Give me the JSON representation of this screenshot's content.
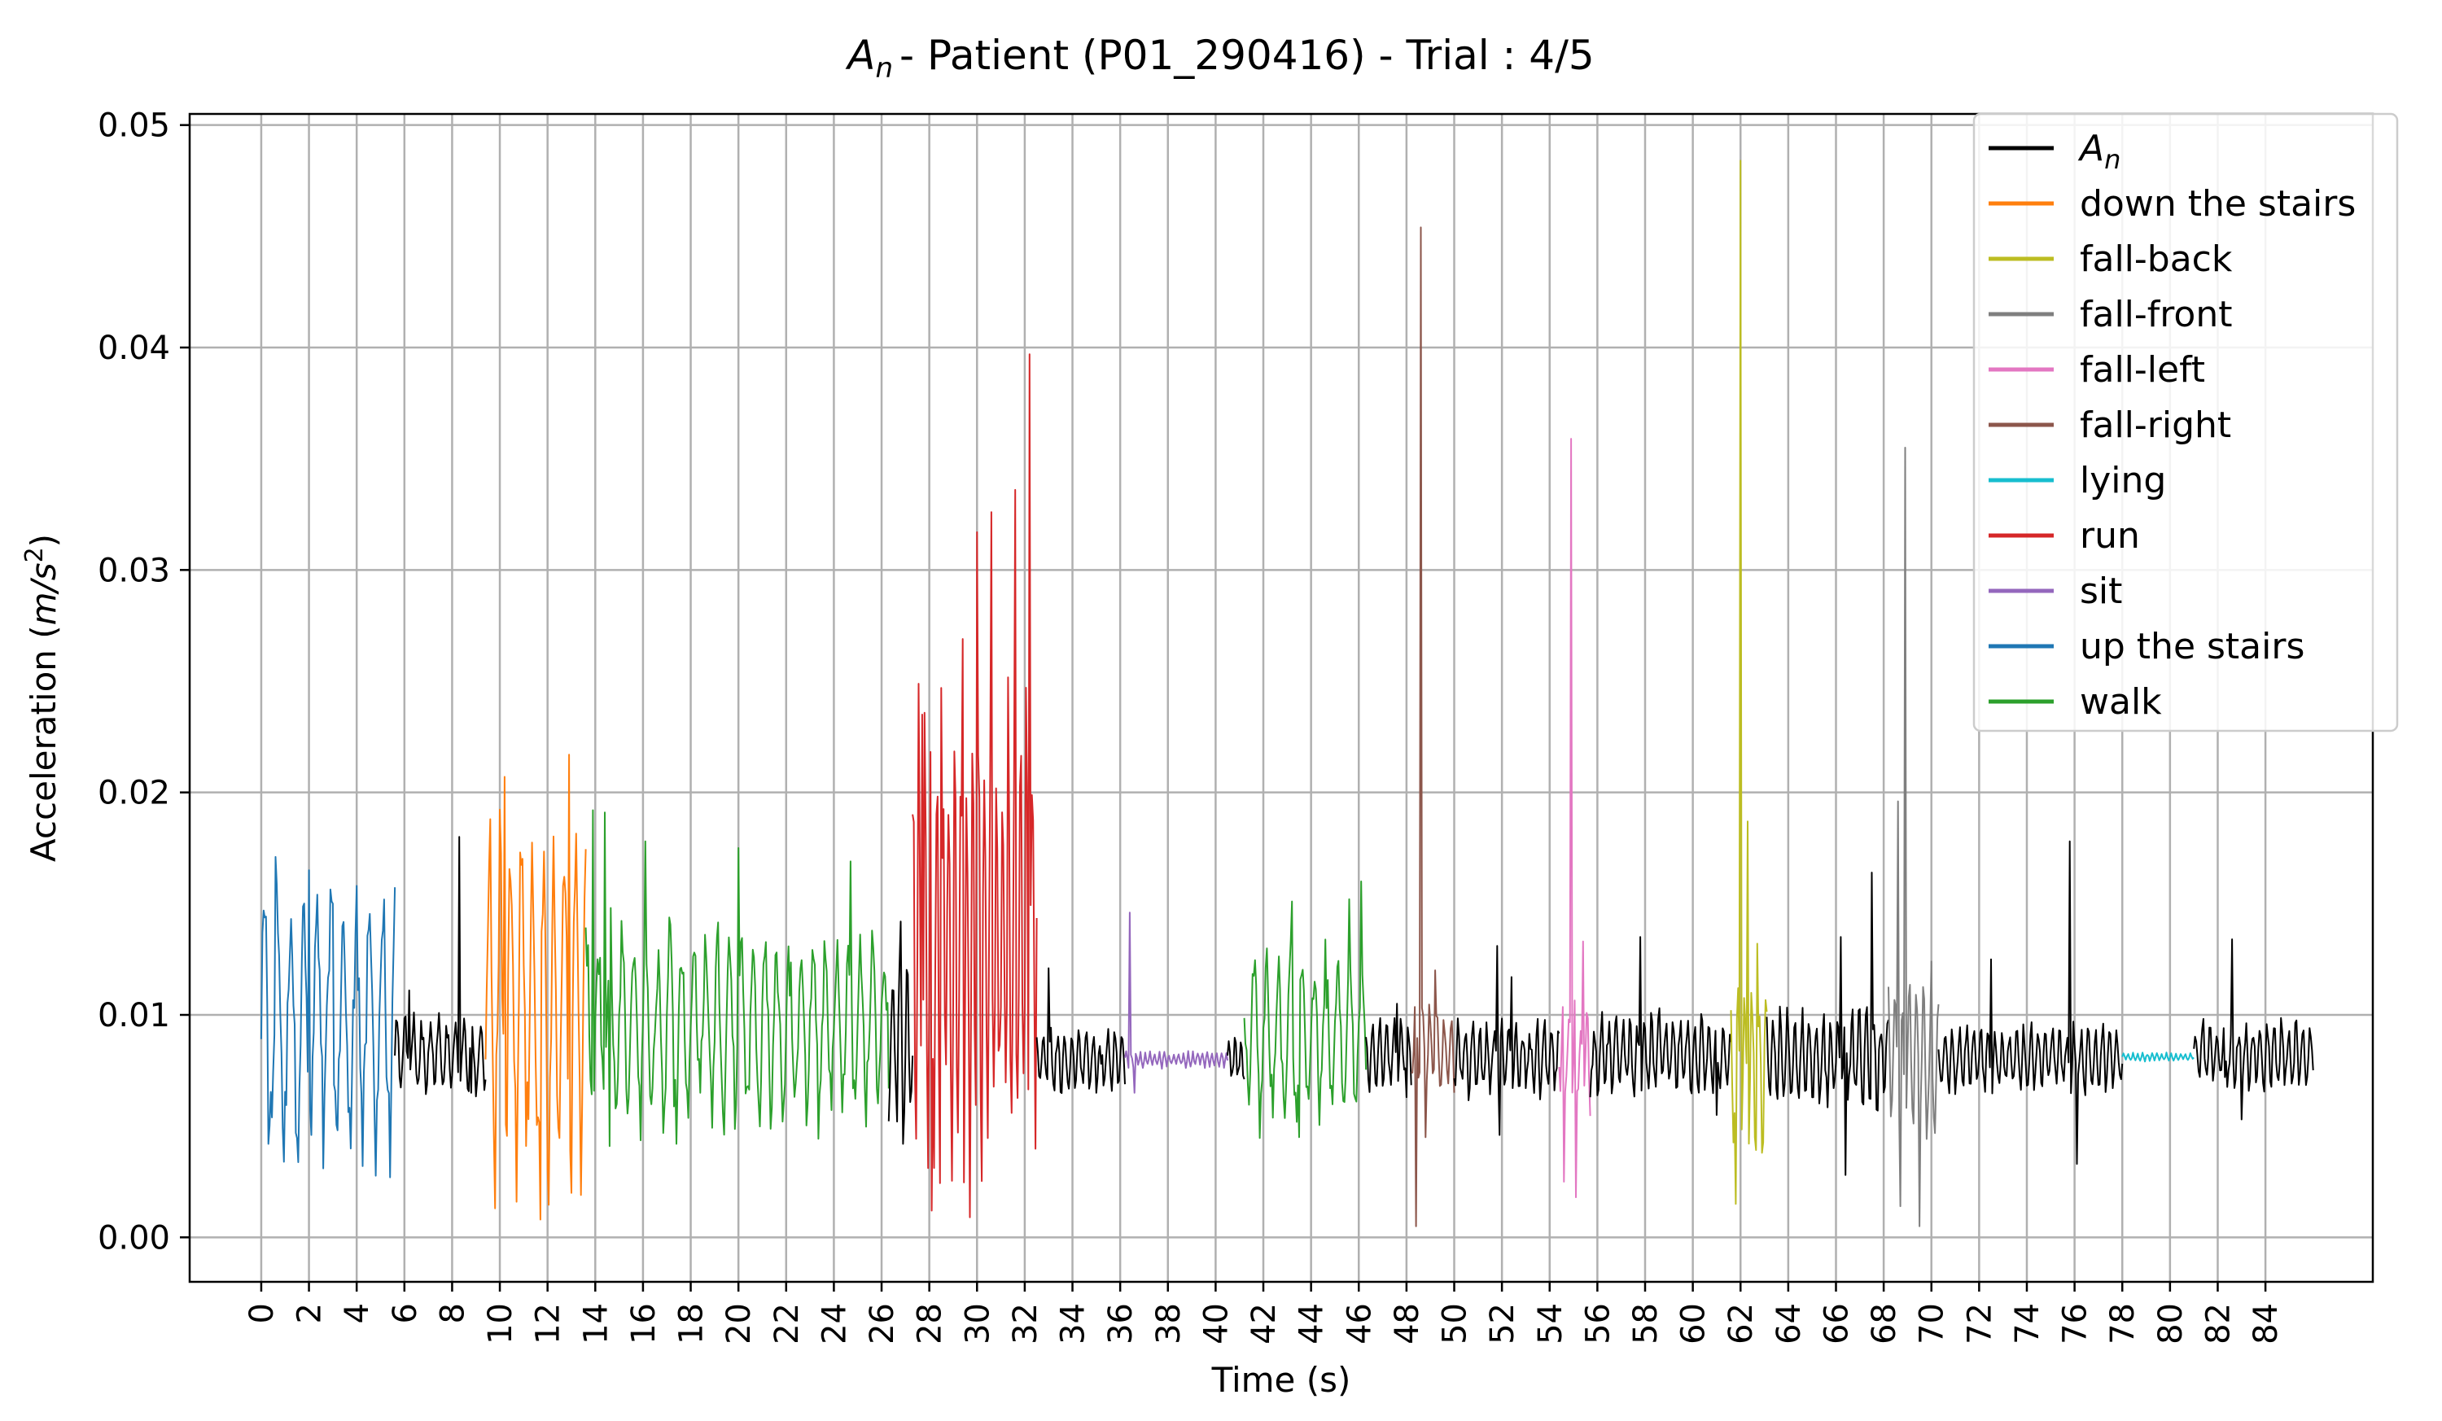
{
  "chart_data": {
    "type": "line",
    "title": "- Patient (P01_290416)  -  Trial : 4/5",
    "title_symbol": "A",
    "title_subscript": "n",
    "xlabel": "Time (s)",
    "ylabel_prefix": "Acceleration (",
    "ylabel_unit_main": "m/s",
    "ylabel_unit_sup": "2",
    "ylabel_suffix": ")",
    "xlim": [
      -3.0,
      88.5
    ],
    "ylim": [
      -0.002,
      0.0505
    ],
    "x_ticks": [
      0,
      2,
      4,
      6,
      8,
      10,
      12,
      14,
      16,
      18,
      20,
      22,
      24,
      26,
      28,
      30,
      32,
      34,
      36,
      38,
      40,
      42,
      44,
      46,
      48,
      50,
      52,
      54,
      56,
      58,
      60,
      62,
      64,
      66,
      68,
      70,
      72,
      74,
      76,
      78,
      80,
      82,
      84
    ],
    "y_ticks": [
      0.0,
      0.01,
      0.02,
      0.03,
      0.04,
      0.05
    ],
    "y_tick_labels": [
      "0.00",
      "0.01",
      "0.02",
      "0.03",
      "0.04",
      "0.05"
    ],
    "grid": true,
    "legend_position": "top-right",
    "series": [
      {
        "name": "A",
        "name_subscript": "n",
        "color": "#000000"
      },
      {
        "name": "down the stairs",
        "color": "#ff7f0e"
      },
      {
        "name": "fall-back",
        "color": "#bcbd22"
      },
      {
        "name": "fall-front",
        "color": "#7f7f7f"
      },
      {
        "name": "fall-left",
        "color": "#e377c2"
      },
      {
        "name": "fall-right",
        "color": "#8c564b"
      },
      {
        "name": "lying",
        "color": "#17becf"
      },
      {
        "name": "run",
        "color": "#d62728"
      },
      {
        "name": "sit",
        "color": "#9467bd"
      },
      {
        "name": "up the stairs",
        "color": "#1f77b4"
      },
      {
        "name": "walk",
        "color": "#2ca02c"
      }
    ],
    "segments": [
      {
        "series": "up the stairs",
        "x_start": 0.0,
        "x_end": 5.6,
        "mean": 0.0095,
        "amp": 0.006,
        "period": 0.55,
        "peaks": [
          [
            0.6,
            0.0171
          ],
          [
            2.0,
            0.0165
          ],
          [
            3.0,
            0.015
          ],
          [
            4.0,
            0.0158
          ],
          [
            0.3,
            0.0042
          ],
          [
            2.6,
            0.0031
          ]
        ]
      },
      {
        "series": "A",
        "x_start": 5.6,
        "x_end": 9.4,
        "mean": 0.0082,
        "amp": 0.0018,
        "period": 0.35,
        "peaks": [
          [
            6.2,
            0.0111
          ],
          [
            8.3,
            0.018
          ],
          [
            8.8,
            0.0065
          ]
        ]
      },
      {
        "series": "down the stairs",
        "x_start": 9.4,
        "x_end": 13.6,
        "mean": 0.0105,
        "amp": 0.008,
        "period": 0.45,
        "peaks": [
          [
            9.6,
            0.0188
          ],
          [
            10.2,
            0.0207
          ],
          [
            12.9,
            0.0217
          ],
          [
            10.7,
            0.0016
          ],
          [
            11.7,
            0.0008
          ],
          [
            13.0,
            0.002
          ]
        ]
      },
      {
        "series": "walk",
        "x_start": 13.6,
        "x_end": 26.3,
        "mean": 0.0095,
        "amp": 0.0045,
        "period": 0.5,
        "peaks": [
          [
            13.9,
            0.0192
          ],
          [
            14.4,
            0.0191
          ],
          [
            16.1,
            0.0178
          ],
          [
            20.0,
            0.0175
          ],
          [
            24.7,
            0.0169
          ],
          [
            14.6,
            0.0041
          ],
          [
            17.4,
            0.0042
          ]
        ]
      },
      {
        "series": "A",
        "x_start": 26.3,
        "x_end": 27.3,
        "mean": 0.009,
        "amp": 0.004,
        "period": 0.3,
        "peaks": [
          [
            26.8,
            0.0142
          ],
          [
            26.9,
            0.0042
          ]
        ]
      },
      {
        "series": "run",
        "x_start": 27.3,
        "x_end": 32.5,
        "mean": 0.013,
        "amp": 0.011,
        "period": 0.25,
        "peaks": [
          [
            27.7,
            0.0235
          ],
          [
            28.5,
            0.0247
          ],
          [
            29.4,
            0.0269
          ],
          [
            30.0,
            0.0317
          ],
          [
            30.6,
            0.0326
          ],
          [
            31.6,
            0.0336
          ],
          [
            32.2,
            0.0397
          ],
          [
            28.1,
            0.0012
          ],
          [
            29.7,
            0.0009
          ]
        ]
      },
      {
        "series": "A",
        "x_start": 32.5,
        "x_end": 36.2,
        "mean": 0.008,
        "amp": 0.0015,
        "period": 0.3,
        "peaks": [
          [
            33.0,
            0.0121
          ],
          [
            35.2,
            0.0078
          ]
        ]
      },
      {
        "series": "sit",
        "x_start": 36.2,
        "x_end": 40.5,
        "mean": 0.008,
        "amp": 0.0004,
        "period": 0.2,
        "peaks": [
          [
            36.4,
            0.0146
          ],
          [
            36.6,
            0.0065
          ]
        ]
      },
      {
        "series": "A",
        "x_start": 40.5,
        "x_end": 41.2,
        "mean": 0.008,
        "amp": 0.0012,
        "period": 0.25,
        "peaks": []
      },
      {
        "series": "walk",
        "x_start": 41.2,
        "x_end": 46.3,
        "mean": 0.009,
        "amp": 0.004,
        "period": 0.5,
        "peaks": [
          [
            43.2,
            0.0151
          ],
          [
            45.6,
            0.0152
          ],
          [
            46.1,
            0.016
          ],
          [
            43.5,
            0.0045
          ]
        ]
      },
      {
        "series": "A",
        "x_start": 46.3,
        "x_end": 48.2,
        "mean": 0.0082,
        "amp": 0.0018,
        "period": 0.3,
        "peaks": [
          [
            47.6,
            0.0105
          ],
          [
            48.0,
            0.0063
          ]
        ]
      },
      {
        "series": "fall-right",
        "x_start": 48.2,
        "x_end": 50.0,
        "mean": 0.0085,
        "amp": 0.002,
        "period": 0.3,
        "peaks": [
          [
            48.6,
            0.0454
          ],
          [
            48.4,
            0.0005
          ],
          [
            48.8,
            0.0045
          ],
          [
            49.2,
            0.012
          ]
        ]
      },
      {
        "series": "A",
        "x_start": 50.0,
        "x_end": 54.4,
        "mean": 0.008,
        "amp": 0.0018,
        "period": 0.3,
        "peaks": [
          [
            51.8,
            0.0131
          ],
          [
            52.4,
            0.0117
          ],
          [
            51.9,
            0.0046
          ],
          [
            53.6,
            0.0062
          ]
        ]
      },
      {
        "series": "fall-left",
        "x_start": 54.4,
        "x_end": 55.7,
        "mean": 0.0082,
        "amp": 0.0025,
        "period": 0.25,
        "peaks": [
          [
            54.9,
            0.0359
          ],
          [
            54.6,
            0.0025
          ],
          [
            55.4,
            0.0133
          ],
          [
            55.1,
            0.0018
          ]
        ]
      },
      {
        "series": "A",
        "x_start": 55.7,
        "x_end": 61.6,
        "mean": 0.0082,
        "amp": 0.0018,
        "period": 0.3,
        "peaks": [
          [
            57.8,
            0.0135
          ],
          [
            58.6,
            0.0103
          ],
          [
            61.0,
            0.0055
          ]
        ]
      },
      {
        "series": "fall-back",
        "x_start": 61.6,
        "x_end": 63.1,
        "mean": 0.0075,
        "amp": 0.0045,
        "period": 0.3,
        "peaks": [
          [
            62.0,
            0.0484
          ],
          [
            62.3,
            0.0187
          ],
          [
            62.7,
            0.0132
          ],
          [
            61.8,
            0.0015
          ]
        ]
      },
      {
        "series": "A",
        "x_start": 63.1,
        "x_end": 68.2,
        "mean": 0.008,
        "amp": 0.0022,
        "period": 0.3,
        "peaks": [
          [
            66.2,
            0.0135
          ],
          [
            67.5,
            0.0164
          ],
          [
            66.4,
            0.0028
          ]
        ]
      },
      {
        "series": "fall-front",
        "x_start": 68.2,
        "x_end": 70.3,
        "mean": 0.008,
        "amp": 0.0035,
        "period": 0.3,
        "peaks": [
          [
            68.6,
            0.0196
          ],
          [
            68.9,
            0.0355
          ],
          [
            69.5,
            0.0005
          ],
          [
            68.7,
            0.0014
          ],
          [
            70.0,
            0.0124
          ]
        ]
      },
      {
        "series": "A",
        "x_start": 70.3,
        "x_end": 78.0,
        "mean": 0.008,
        "amp": 0.0016,
        "period": 0.3,
        "peaks": [
          [
            75.8,
            0.0178
          ],
          [
            76.1,
            0.0033
          ],
          [
            72.5,
            0.0125
          ]
        ]
      },
      {
        "series": "lying",
        "x_start": 78.0,
        "x_end": 81.0,
        "mean": 0.0081,
        "amp": 0.0002,
        "period": 0.2,
        "peaks": []
      },
      {
        "series": "A",
        "x_start": 81.0,
        "x_end": 86.0,
        "mean": 0.0082,
        "amp": 0.0016,
        "period": 0.3,
        "peaks": [
          [
            82.6,
            0.0134
          ],
          [
            82.3,
            0.0072
          ],
          [
            83.0,
            0.0053
          ]
        ]
      }
    ]
  }
}
